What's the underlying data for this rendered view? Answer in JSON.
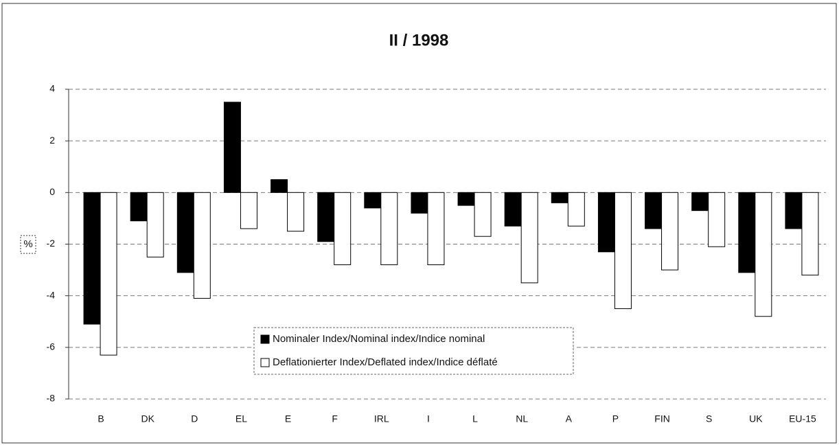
{
  "chart_data": {
    "type": "bar",
    "title": "II  /  1998",
    "y_label": "%",
    "categories": [
      "B",
      "DK",
      "D",
      "EL",
      "E",
      "F",
      "IRL",
      "I",
      "L",
      "NL",
      "A",
      "P",
      "FIN",
      "S",
      "UK",
      "EU-15"
    ],
    "series": [
      {
        "name": "Nominaler Index/Nominal index/Indice nominal",
        "color": "#000000",
        "values": [
          -5.1,
          -1.1,
          -3.1,
          3.5,
          0.5,
          -1.9,
          -0.6,
          -0.8,
          -0.5,
          -1.3,
          -0.4,
          -2.3,
          -1.4,
          -0.7,
          -3.1,
          -1.4
        ]
      },
      {
        "name": "Deflationierter Index/Deflated index/Indice déflaté",
        "color": "#ffffff",
        "values": [
          -6.3,
          -2.5,
          -4.1,
          -1.4,
          -1.5,
          -2.8,
          -2.8,
          -2.8,
          -1.7,
          -3.5,
          -1.3,
          -4.5,
          -3.0,
          -2.1,
          -4.8,
          -3.2
        ]
      }
    ],
    "ylim": [
      -8,
      4
    ],
    "yticks": [
      -8,
      -6,
      -4,
      -2,
      0,
      2,
      4
    ],
    "grid": true
  }
}
